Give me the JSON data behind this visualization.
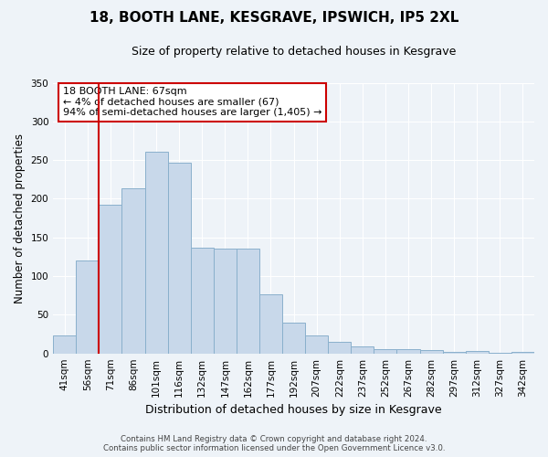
{
  "title": "18, BOOTH LANE, KESGRAVE, IPSWICH, IP5 2XL",
  "subtitle": "Size of property relative to detached houses in Kesgrave",
  "xlabel": "Distribution of detached houses by size in Kesgrave",
  "ylabel": "Number of detached properties",
  "bar_labels": [
    "41sqm",
    "56sqm",
    "71sqm",
    "86sqm",
    "101sqm",
    "116sqm",
    "132sqm",
    "147sqm",
    "162sqm",
    "177sqm",
    "192sqm",
    "207sqm",
    "222sqm",
    "237sqm",
    "252sqm",
    "267sqm",
    "282sqm",
    "297sqm",
    "312sqm",
    "327sqm",
    "342sqm"
  ],
  "bar_values": [
    23,
    120,
    192,
    213,
    261,
    247,
    137,
    136,
    136,
    76,
    40,
    23,
    15,
    9,
    6,
    6,
    4,
    2,
    3,
    1,
    2
  ],
  "bar_color": "#c8d8ea",
  "bar_edge_color": "#8ab0cc",
  "vline_color": "#cc0000",
  "vline_x_index": 1.5,
  "ylim": [
    0,
    350
  ],
  "yticks": [
    0,
    50,
    100,
    150,
    200,
    250,
    300,
    350
  ],
  "annotation_title": "18 BOOTH LANE: 67sqm",
  "annotation_line1": "← 4% of detached houses are smaller (67)",
  "annotation_line2": "94% of semi-detached houses are larger (1,405) →",
  "annotation_box_color": "#ffffff",
  "annotation_box_edge": "#cc0000",
  "footer1": "Contains HM Land Registry data © Crown copyright and database right 2024.",
  "footer2": "Contains public sector information licensed under the Open Government Licence v3.0.",
  "bg_color": "#eef3f8",
  "plot_bg_color": "#eef3f8",
  "grid_color": "#ffffff",
  "title_fontsize": 11,
  "subtitle_fontsize": 9,
  "ylabel_fontsize": 8.5,
  "xlabel_fontsize": 9,
  "tick_fontsize": 7.5,
  "annotation_fontsize": 8
}
